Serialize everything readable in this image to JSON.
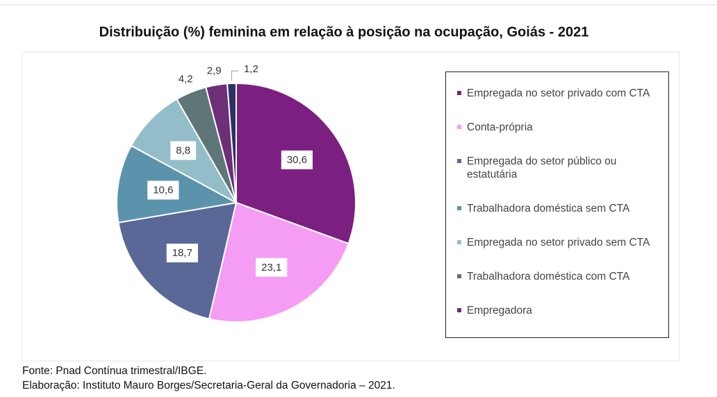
{
  "chart_data": {
    "type": "pie",
    "title": "Distribuição (%) feminina em relação à posição na ocupação, Goiás - 2021",
    "categories": [
      "Empregada no setor privado com CTA",
      "Conta-própria",
      "Empregada do setor público ou estatutária",
      "Trabalhadora doméstica sem CTA",
      "Empregada no setor privado sem CTA",
      "Trabalhadora doméstica com CTA",
      "Empregadora",
      null
    ],
    "values": [
      30.6,
      23.1,
      18.7,
      10.6,
      8.8,
      4.2,
      2.9,
      1.2
    ],
    "value_labels": [
      "30,6",
      "23,1",
      "18,7",
      "10,6",
      "8,8",
      "4,2",
      "2,9",
      "1,2"
    ],
    "colors": [
      "#7b1f80",
      "#f59cf5",
      "#5a6897",
      "#5b93ad",
      "#93bdc8",
      "#5e7678",
      "#6d2f78",
      "#2c3163"
    ],
    "legend": "right",
    "source": [
      "Fonte: Pnad Contínua trimestral/IBGE.",
      "Elaboração: Instituto Mauro Borges/Secretaria-Geral da Governadoria – 2021."
    ]
  }
}
